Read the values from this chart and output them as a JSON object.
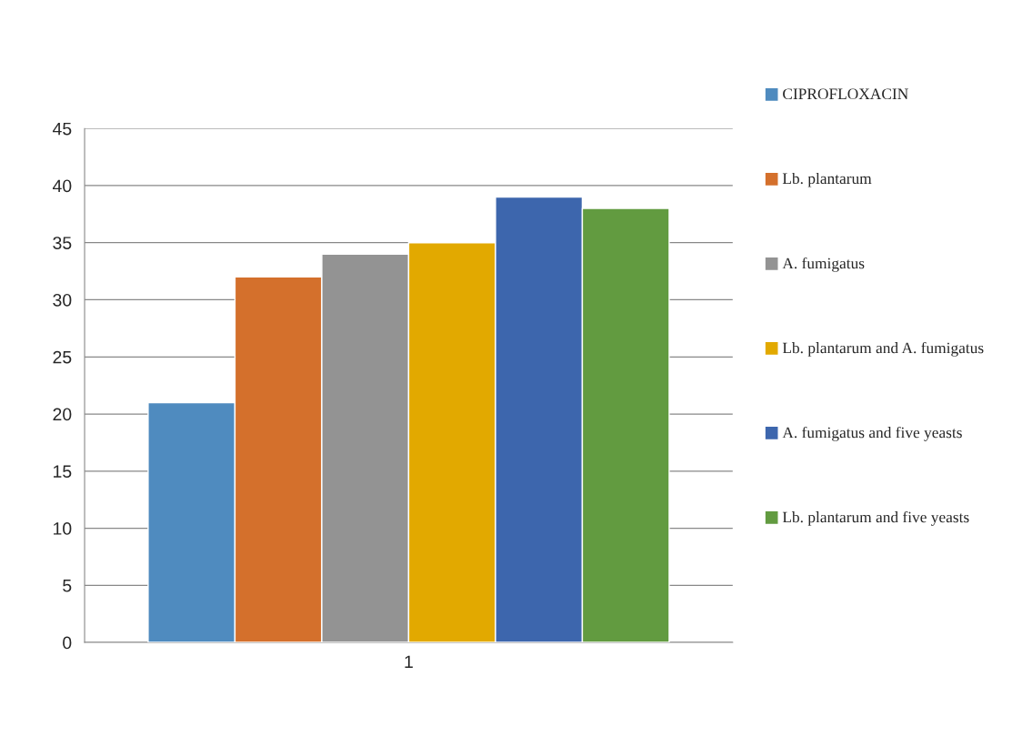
{
  "chart_data": {
    "type": "bar",
    "categories": [
      "1"
    ],
    "series": [
      {
        "name": "CIPROFLOXACIN",
        "color": "#4f8bbf",
        "values": [
          21
        ]
      },
      {
        "name": "Lb. plantarum",
        "color": "#d4702c",
        "values": [
          32
        ]
      },
      {
        "name": "A. fumigatus",
        "color": "#939393",
        "values": [
          34
        ]
      },
      {
        "name": "Lb. plantarum and A. fumigatus",
        "color": "#e2a900",
        "values": [
          35
        ]
      },
      {
        "name": "A. fumigatus and five yeasts",
        "color": "#3d66ad",
        "values": [
          39
        ]
      },
      {
        "name": "Lb. plantarum and five yeasts",
        "color": "#629b40",
        "values": [
          38
        ]
      }
    ],
    "ylim": [
      0,
      45
    ],
    "yticks": [
      0,
      5,
      10,
      15,
      20,
      25,
      30,
      35,
      40,
      45
    ],
    "grid": "y",
    "legend": "right"
  }
}
